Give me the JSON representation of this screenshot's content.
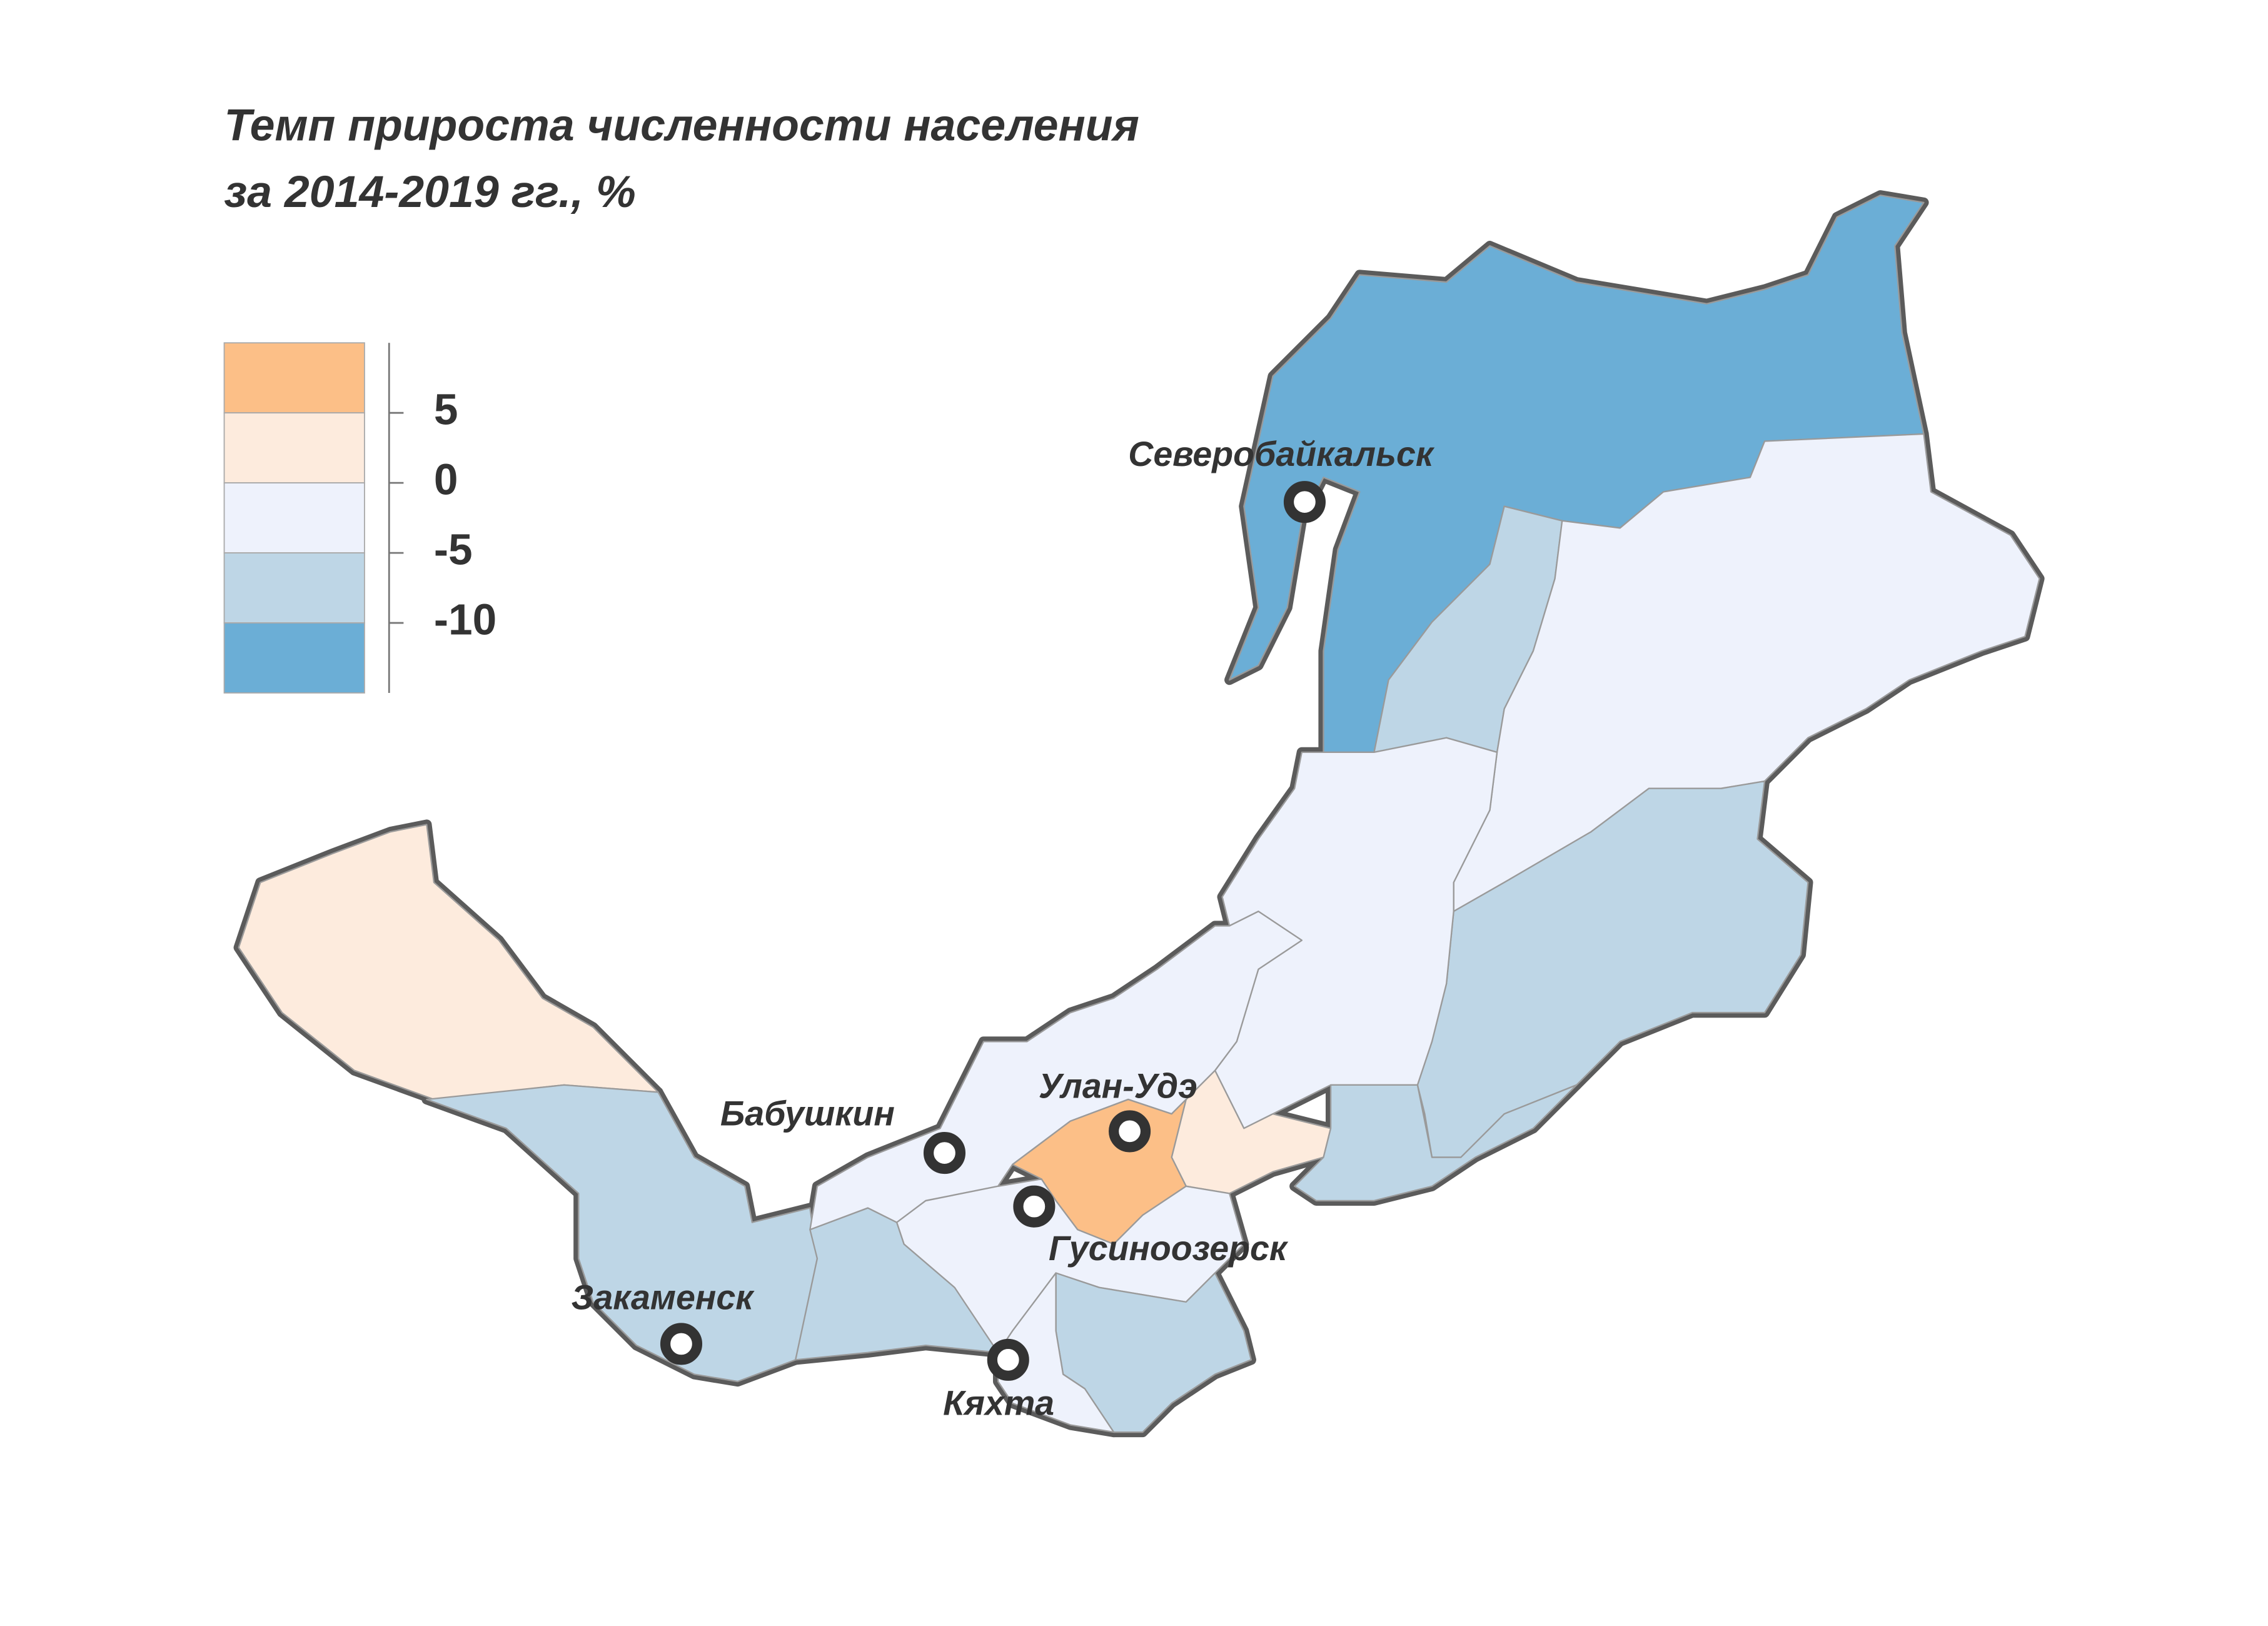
{
  "title": [
    "Темп прироста численности населения",
    "за 2014-2019 гг., %"
  ],
  "legend": {
    "colors": [
      "#fcbf87",
      "#fdebdd",
      "#eef2fc",
      "#bed6e6",
      "#6baed6"
    ],
    "ticks": [
      5,
      0,
      -5,
      -10
    ]
  },
  "cities": [
    {
      "name": "Северобайкальск"
    },
    {
      "name": "Улан-Удэ"
    },
    {
      "name": "Бабушкин"
    },
    {
      "name": "Гусиноозерск"
    },
    {
      "name": "Закаменск"
    },
    {
      "name": "Кяхта"
    }
  ]
}
